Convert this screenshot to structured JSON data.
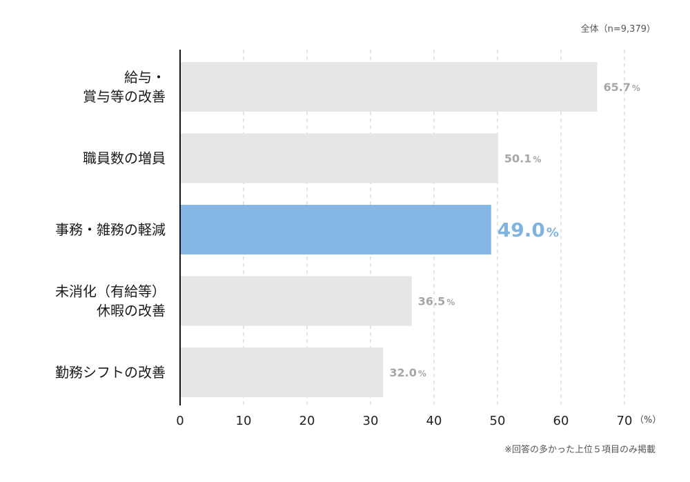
{
  "header": {
    "sample_note": "全体（n=9,379）"
  },
  "footer": {
    "note": "※回答の多かった上位５項目のみ掲載"
  },
  "colors": {
    "bar_default": "#e6e6e6",
    "bar_highlight": "#84b7e3",
    "value_default": "#a6a6a6",
    "value_highlight": "#7fb3e0",
    "axis": "#111111",
    "grid": "#c8c8c8"
  },
  "chart_data": {
    "type": "bar",
    "orientation": "horizontal",
    "categories": [
      [
        "給与・",
        "賞与等の改善"
      ],
      [
        "職員数の増員"
      ],
      [
        "事務・雑務の軽減"
      ],
      [
        "未消化（有給等）",
        "休暇の改善"
      ],
      [
        "勤務シフトの改善"
      ]
    ],
    "values": [
      65.7,
      50.1,
      49.0,
      36.5,
      32.0
    ],
    "value_labels": [
      "65.7",
      "50.1",
      "49.0",
      "36.5",
      "32.0"
    ],
    "value_suffix": "%",
    "highlight_index": 2,
    "xlim": [
      0,
      70
    ],
    "xticks": [
      0,
      10,
      20,
      30,
      40,
      50,
      60,
      70
    ],
    "x_unit": "（%）",
    "grid": "vertical dashed",
    "legend": "none"
  }
}
